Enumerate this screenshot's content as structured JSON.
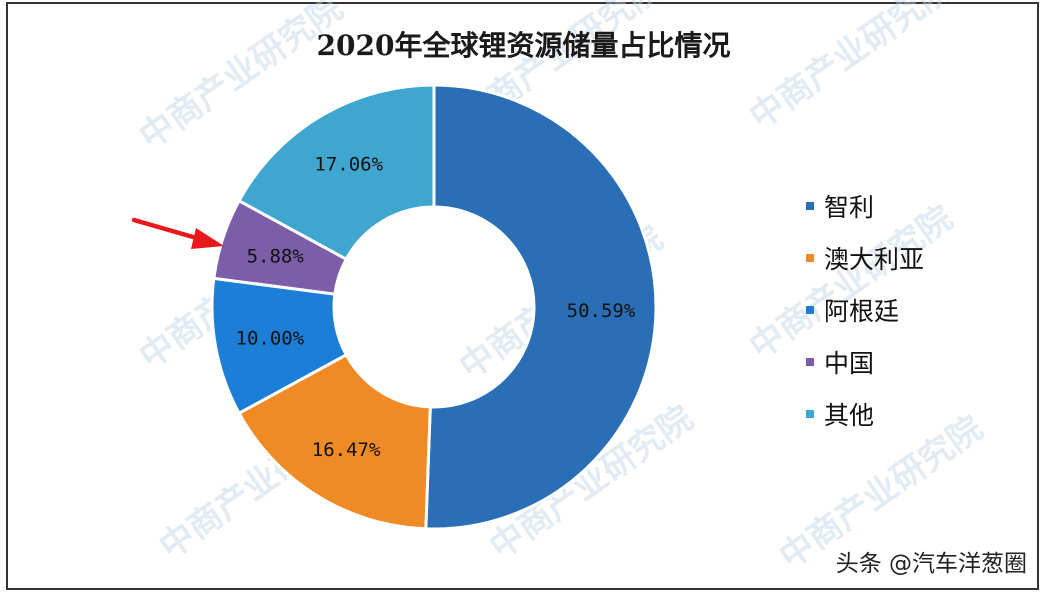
{
  "chart_data": {
    "type": "pie",
    "title": "2020年全球锂资源储量占比情况",
    "categories": [
      "智利",
      "澳大利亚",
      "阿根廷",
      "中国",
      "其他"
    ],
    "values": [
      50.59,
      16.47,
      10.0,
      5.88,
      17.06
    ],
    "value_labels": [
      "50.59%",
      "16.47%",
      "10.00%",
      "5.88%",
      "17.06%"
    ],
    "colors": [
      "#2a6fb5",
      "#f08a24",
      "#1c7ed6",
      "#7b5ea7",
      "#3fa7cf"
    ],
    "donut": true,
    "legend_position": "right",
    "start_angle": "top",
    "direction": "clockwise"
  },
  "annotation": {
    "arrow_color": "#e8191b"
  },
  "watermark_text": "中商产业研究院",
  "footer": {
    "text": "头条 @汽车洋葱圈"
  }
}
